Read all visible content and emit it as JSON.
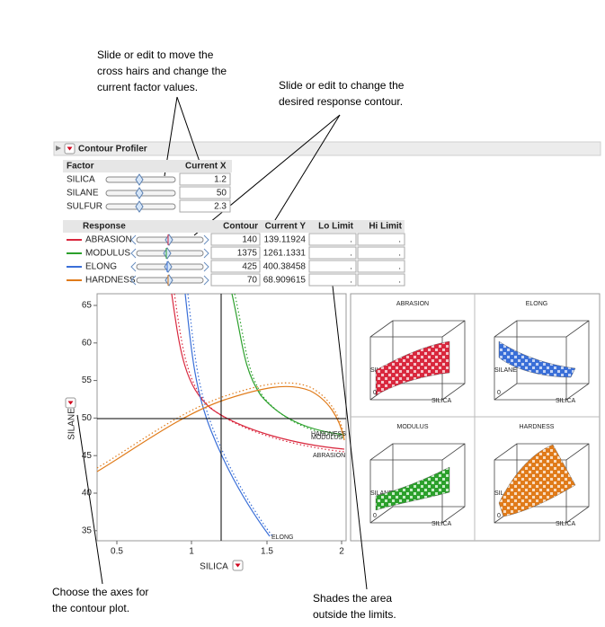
{
  "annotations": [
    {
      "lines": [
        "Slide or edit to move the",
        "cross hairs and change the",
        "current factor values."
      ]
    },
    {
      "lines": [
        "Slide or edit to change the",
        "desired response contour."
      ]
    },
    {
      "lines": [
        "Choose the axes for",
        "the contour plot."
      ]
    },
    {
      "lines": [
        "Shades the area",
        "outside the limits."
      ]
    }
  ],
  "panel": {
    "title": "Contour Profiler",
    "factors": {
      "headers": [
        "Factor",
        "Current X"
      ],
      "rows": [
        [
          "SILICA",
          "1.2"
        ],
        [
          "SILANE",
          "50"
        ],
        [
          "SULFUR",
          "2.3"
        ]
      ]
    },
    "responses": {
      "headers": [
        "Response",
        "Contour",
        "Current Y",
        "Lo Limit",
        "Hi Limit"
      ],
      "rows": [
        [
          "ABRASION",
          "140",
          "139.11924",
          ".",
          "."
        ],
        [
          "MODULUS",
          "1375",
          "1261.1331",
          ".",
          "."
        ],
        [
          "ELONG",
          "425",
          "400.38458",
          ".",
          "."
        ],
        [
          "HARDNESS",
          "70",
          "68.909615",
          ".",
          "."
        ]
      ]
    },
    "contour_plot": {
      "x_label": "SILICA",
      "y_label": "SILANE",
      "xticks": [
        "0.5",
        "1",
        "1.5",
        "2"
      ],
      "yticks": [
        "65",
        "60",
        "55",
        "50",
        "45",
        "40",
        "35"
      ],
      "curve_labels": [
        "ABRASION",
        "HARDNESS",
        "MODULUS",
        "ELONG"
      ]
    },
    "surfaces": [
      {
        "title": "ABRASION",
        "x_label": "SILICA",
        "y_label": "SILANE",
        "z_tick": "0"
      },
      {
        "title": "ELONG",
        "x_label": "SILICA",
        "y_label": "SILANE",
        "z_tick": "0"
      },
      {
        "title": "MODULUS",
        "x_label": "SILICA",
        "y_label": "SILANE",
        "z_tick": "0"
      },
      {
        "title": "HARDNESS",
        "x_label": "SILICA",
        "y_label": "SILANE",
        "z_tick": "0"
      }
    ]
  }
}
